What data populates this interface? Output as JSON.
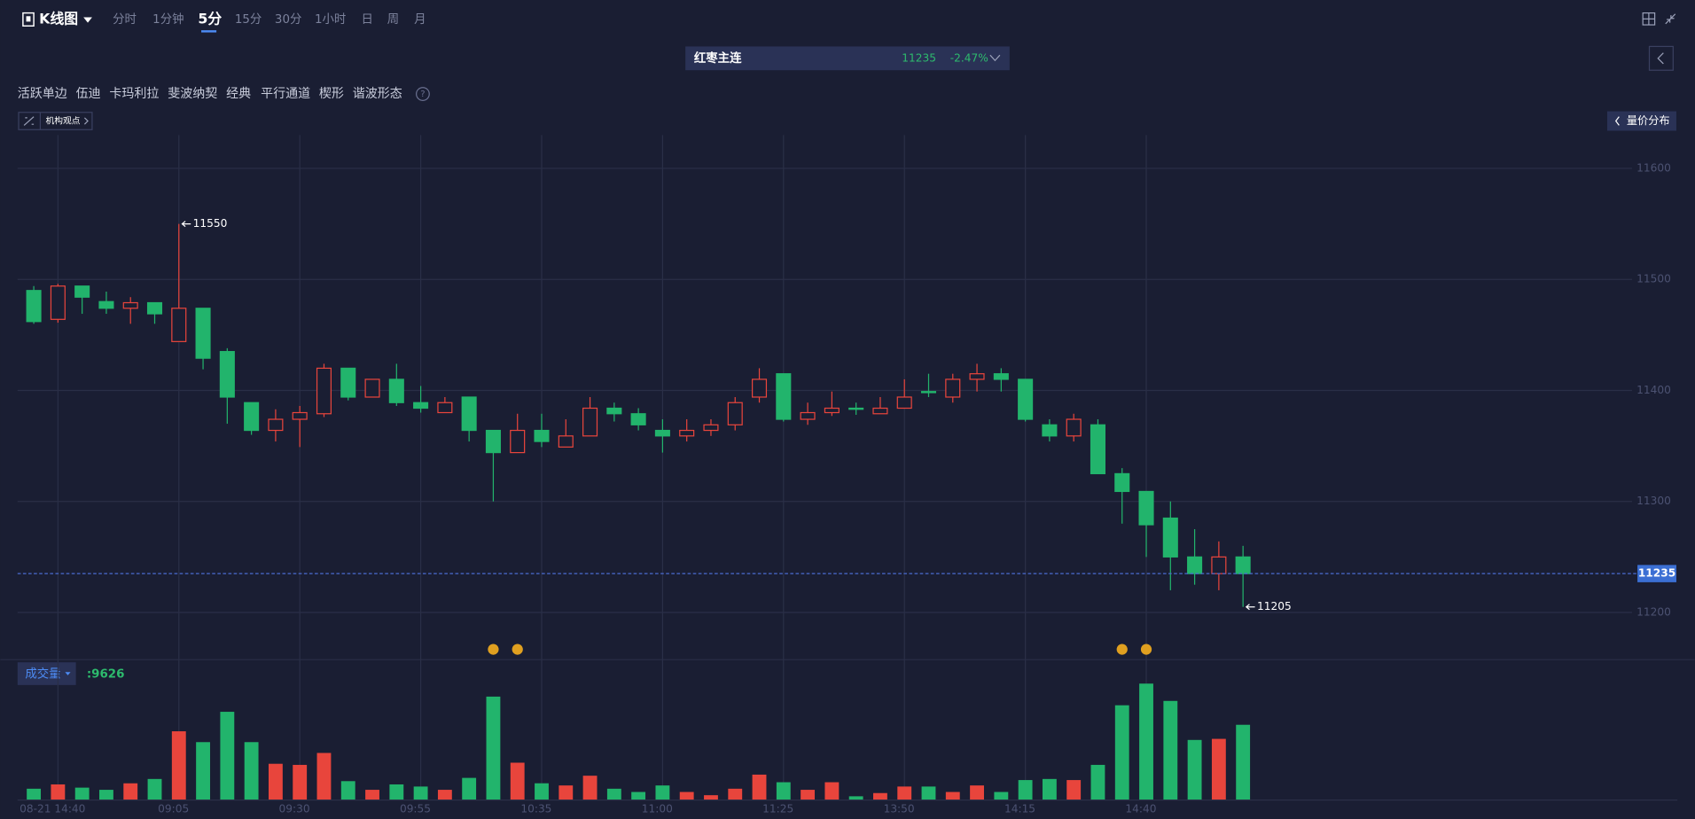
{
  "toolbar": {
    "chart_name": "K线图",
    "periods": [
      "分时",
      "1分钟",
      "5分",
      "15分",
      "30分",
      "1小时",
      "日",
      "周",
      "月"
    ]
  },
  "symbol": {
    "name": "红枣主连",
    "price": 11235,
    "change": "-2.47%"
  },
  "drawing_tools": [
    "活跃单边",
    "伍迪",
    "卡玛利拉",
    "斐波纳契",
    "经典",
    "平行通道",
    "楔形",
    "谐波形态"
  ],
  "badge": "机构观点",
  "volume_profile_button": "量价分布",
  "chart_data": [
    {
      "type": "candlestick",
      "categories": [
        null,
        "08-21 14:40",
        null,
        null,
        null,
        null,
        "09:05",
        null,
        null,
        null,
        null,
        "09:30",
        null,
        null,
        null,
        null,
        "09:55",
        null,
        null,
        null,
        null,
        "10:35",
        null,
        null,
        null,
        null,
        "11:00",
        null,
        null,
        null,
        null,
        "11:25",
        null,
        null,
        null,
        null,
        "13:50",
        null,
        null,
        null,
        null,
        "14:15",
        null,
        null,
        null,
        null,
        "14:40",
        null,
        null,
        null,
        null
      ],
      "open": [
        11490,
        11464,
        11494,
        11480,
        11474,
        11479,
        11444,
        11474,
        11435,
        11389,
        11364,
        11374,
        11379,
        11420,
        11394,
        11410,
        11389,
        11380,
        11394,
        11364,
        11344,
        11364,
        11349,
        11359,
        11384,
        11379,
        11364,
        11359,
        11364,
        11369,
        11394,
        11415,
        11374,
        11380,
        11384,
        11379,
        11384,
        11399,
        11394,
        11410,
        11415,
        11410,
        11369,
        11359,
        11369,
        11325,
        11309,
        11285,
        11250,
        11235,
        11250
      ],
      "high": [
        11494,
        11496,
        11494,
        11489,
        11484,
        11479,
        11550,
        11474,
        11438,
        11389,
        11383,
        11386,
        11424,
        11420,
        11410,
        11424,
        11404,
        11394,
        11394,
        11364,
        11379,
        11379,
        11374,
        11394,
        11389,
        11384,
        11374,
        11374,
        11374,
        11394,
        11420,
        11415,
        11389,
        11399,
        11389,
        11394,
        11410,
        11415,
        11415,
        11424,
        11420,
        11410,
        11374,
        11379,
        11374,
        11330,
        11309,
        11300,
        11275,
        11264,
        11260
      ],
      "low": [
        11460,
        11461,
        11469,
        11469,
        11460,
        11460,
        11444,
        11419,
        11370,
        11360,
        11354,
        11349,
        11376,
        11391,
        11394,
        11386,
        11380,
        11380,
        11354,
        11300,
        11344,
        11349,
        11349,
        11359,
        11372,
        11364,
        11344,
        11354,
        11359,
        11364,
        11389,
        11372,
        11369,
        11377,
        11378,
        11379,
        11384,
        11394,
        11389,
        11399,
        11399,
        11372,
        11354,
        11354,
        11325,
        11280,
        11250,
        11220,
        11225,
        11220,
        11205
      ],
      "close": [
        11462,
        11494,
        11484,
        11474,
        11479,
        11469,
        11474,
        11429,
        11394,
        11364,
        11374,
        11380,
        11420,
        11394,
        11410,
        11389,
        11384,
        11389,
        11364,
        11344,
        11364,
        11354,
        11359,
        11384,
        11379,
        11369,
        11359,
        11364,
        11369,
        11389,
        11410,
        11374,
        11380,
        11384,
        11383,
        11384,
        11394,
        11398,
        11410,
        11415,
        11410,
        11374,
        11359,
        11374,
        11325,
        11309,
        11279,
        11250,
        11235,
        11250,
        11235
      ],
      "colors": {
        "up": "#e8453c",
        "down": "#22b46c"
      },
      "last_price": 11235,
      "ylim": [
        11158,
        11630
      ],
      "yticks": [
        11200,
        11300,
        11400,
        11500,
        11600
      ],
      "grid": true
    },
    {
      "type": "bar",
      "title": "成交量",
      "current_label": ":9626",
      "values": [
        1395,
        1950,
        1535,
        1255,
        2090,
        2650,
        8790,
        7395,
        11300,
        7395,
        4605,
        4465,
        6000,
        2370,
        1255,
        1950,
        1675,
        1255,
        2790,
        13255,
        4745,
        2095,
        1815,
        3070,
        1395,
        975,
        1815,
        975,
        560,
        1395,
        3210,
        2230,
        1255,
        2230,
        420,
        835,
        1675,
        1675,
        975,
        1815,
        975,
        2510,
        2650,
        2510,
        4465,
        12140,
        14930,
        12700,
        7675,
        7815,
        9626
      ],
      "ylim": [
        0,
        16000
      ]
    }
  ]
}
